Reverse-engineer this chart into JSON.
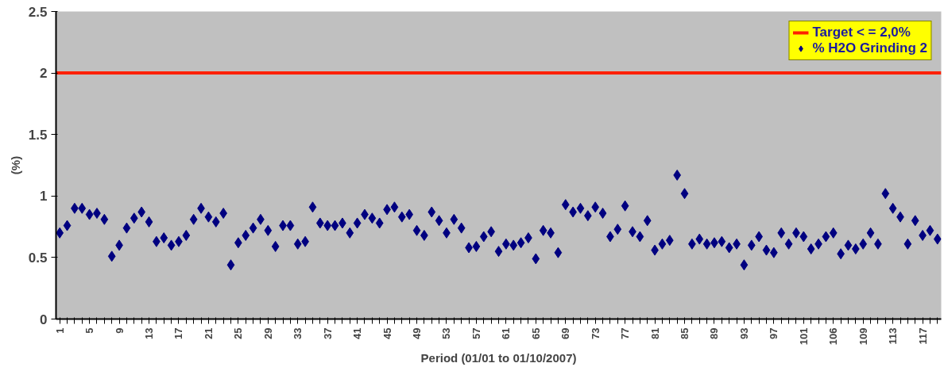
{
  "chart_data": {
    "type": "scatter",
    "xlabel": "Period (01/01 to 01/10/2007)",
    "ylabel": "(%)",
    "categories": [
      "1",
      null,
      null,
      null,
      "5",
      null,
      null,
      null,
      "9",
      null,
      null,
      null,
      "13",
      null,
      null,
      null,
      "17",
      null,
      null,
      null,
      "21",
      null,
      null,
      null,
      "25",
      null,
      null,
      null,
      "29",
      null,
      null,
      null,
      "33",
      null,
      null,
      null,
      "37",
      null,
      null,
      null,
      "41",
      null,
      null,
      null,
      "45",
      null,
      null,
      null,
      "49",
      null,
      null,
      null,
      "53",
      null,
      null,
      null,
      "57",
      null,
      null,
      null,
      "61",
      null,
      null,
      null,
      "65",
      null,
      null,
      null,
      "69",
      null,
      null,
      null,
      "73",
      null,
      null,
      null,
      "77",
      null,
      null,
      null,
      "81",
      null,
      null,
      null,
      "85",
      null,
      null,
      null,
      "89",
      null,
      null,
      null,
      "93",
      null,
      null,
      null,
      "97",
      null,
      null,
      null,
      "101",
      null,
      null,
      null,
      "106",
      null,
      null,
      null,
      "109",
      null,
      null,
      null,
      "113",
      null,
      null,
      null,
      "117",
      null,
      null
    ],
    "series": [
      {
        "name": "% H2O Grinding 2",
        "color": "#000080",
        "values": [
          0.7,
          0.76,
          0.9,
          0.9,
          0.85,
          0.86,
          0.81,
          0.51,
          0.6,
          0.74,
          0.82,
          0.87,
          0.79,
          0.63,
          0.66,
          0.6,
          0.63,
          0.68,
          0.81,
          0.9,
          0.83,
          0.79,
          0.86,
          0.44,
          0.62,
          0.68,
          0.74,
          0.81,
          0.72,
          0.59,
          0.76,
          0.76,
          0.61,
          0.63,
          0.91,
          0.78,
          0.76,
          0.76,
          0.78,
          0.7,
          0.78,
          0.85,
          0.82,
          0.78,
          0.89,
          0.91,
          0.83,
          0.85,
          0.72,
          0.68,
          0.87,
          0.8,
          0.7,
          0.81,
          0.74,
          0.58,
          0.59,
          0.67,
          0.71,
          0.55,
          0.61,
          0.6,
          0.62,
          0.66,
          0.49,
          0.72,
          0.7,
          0.54,
          0.93,
          0.87,
          0.9,
          0.84,
          0.91,
          0.86,
          0.67,
          0.73,
          0.92,
          0.71,
          0.67,
          0.8,
          0.56,
          0.61,
          0.64,
          1.17,
          1.02,
          0.61,
          0.65,
          0.61,
          0.62,
          0.63,
          0.58,
          0.61,
          0.44,
          0.6,
          0.67,
          0.56,
          0.54,
          0.7,
          0.61,
          0.7,
          0.67,
          0.57,
          0.61,
          0.67,
          0.7,
          0.53,
          0.6,
          0.57,
          0.61,
          0.7,
          0.61,
          1.02,
          0.9,
          0.83,
          0.61,
          0.8,
          0.68,
          0.72,
          0.65
        ]
      }
    ],
    "marker": "diamond",
    "ylim": [
      0,
      2.5
    ],
    "yticks": [
      0,
      0.5,
      1,
      1.5,
      2,
      2.5
    ],
    "ref_lines": [
      {
        "axis": "y",
        "value": 2,
        "label": "Target < = 2,0%",
        "color": "#ff2000"
      }
    ],
    "legend": "top right",
    "grid": false
  }
}
